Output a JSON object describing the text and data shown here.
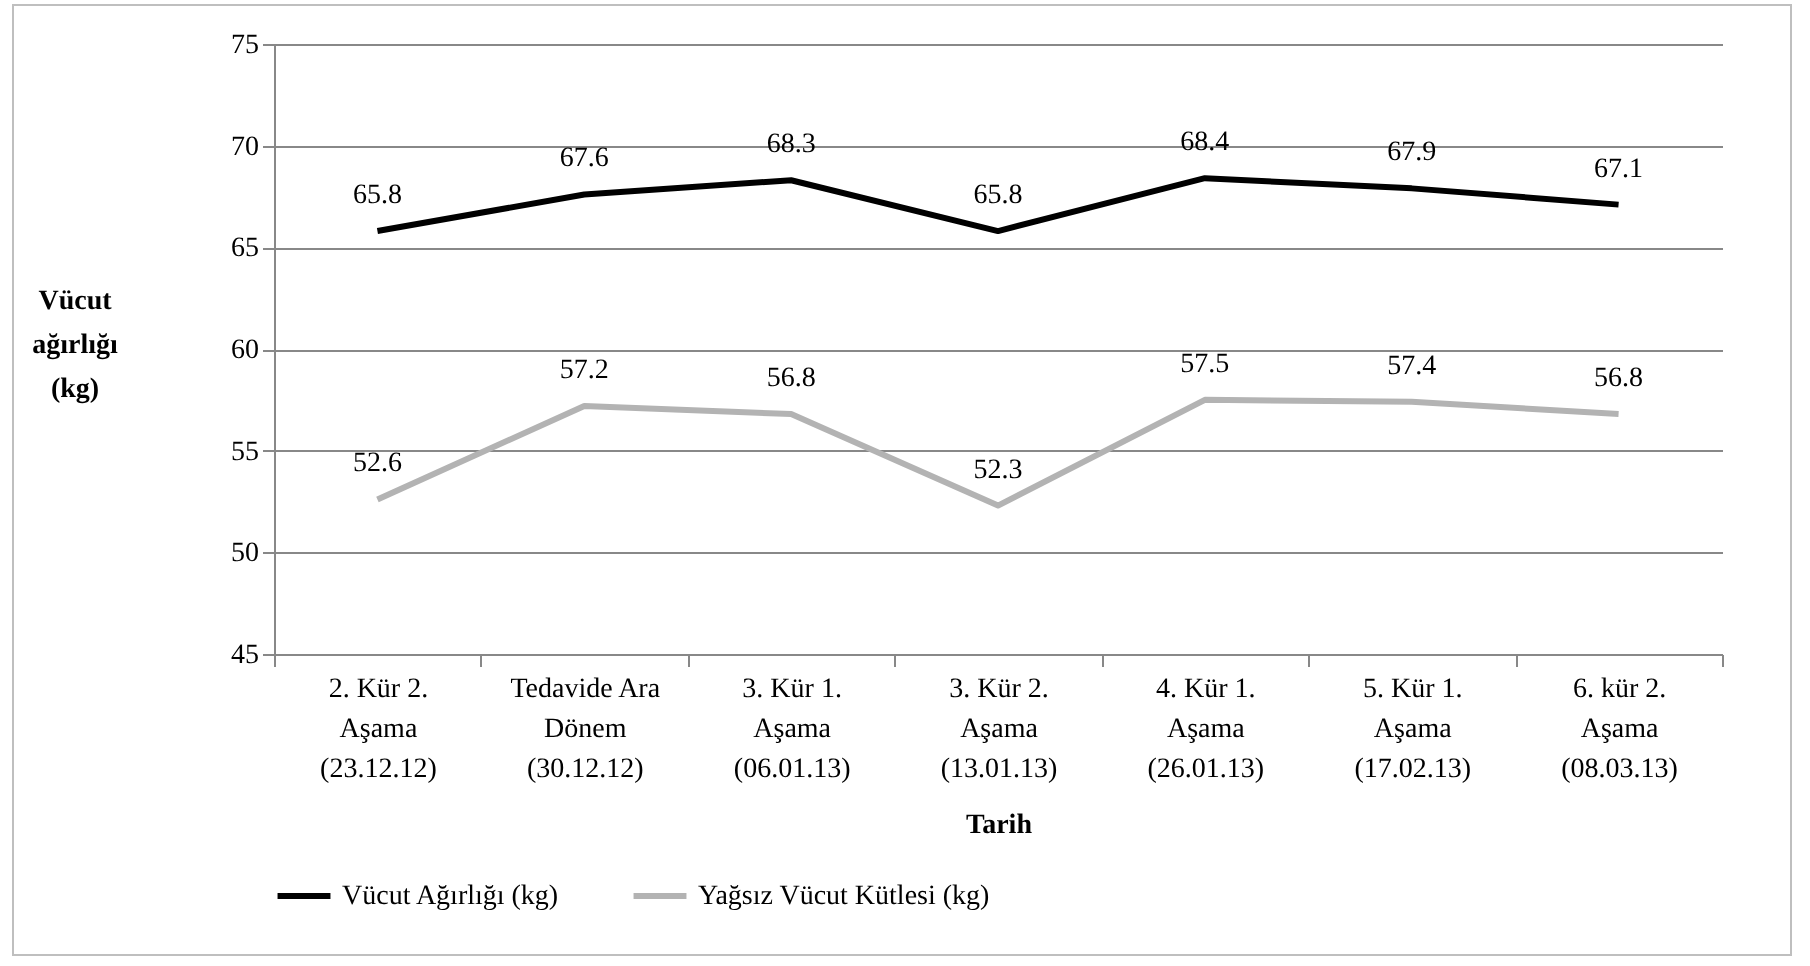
{
  "chart_data": {
    "type": "line",
    "xlabel": "Tarih",
    "ylabel": "Vücut ağırlığı (kg)",
    "categories": [
      "2. Kür 2.\nAşama\n(23.12.12)",
      "Tedavide Ara\nDönem\n(30.12.12)",
      "3. Kür 1.\nAşama\n(06.01.13)",
      "3. Kür 2.\nAşama\n(13.01.13)",
      "4. Kür 1.\nAşama\n(26.01.13)",
      "5. Kür 1.\nAşama\n(17.02.13)",
      "6. kür 2.\nAşama\n(08.03.13)"
    ],
    "series": [
      {
        "name": "Vücut Ağırlığı (kg)",
        "color": "#000000",
        "values": [
          65.8,
          67.6,
          68.3,
          65.8,
          68.4,
          67.9,
          67.1
        ]
      },
      {
        "name": "Yağsız Vücut Kütlesi (kg)",
        "color": "#b3b3b3",
        "values": [
          52.6,
          57.2,
          56.8,
          52.3,
          57.5,
          57.4,
          56.8
        ]
      }
    ],
    "ylim": [
      45,
      75
    ],
    "yticks": [
      45,
      50,
      55,
      60,
      65,
      70,
      75
    ],
    "grid": "y",
    "legend": "bottom",
    "data_labels": true,
    "marker": "none",
    "line_style": "solid"
  }
}
